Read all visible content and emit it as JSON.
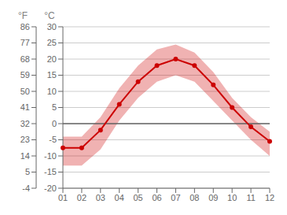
{
  "chart_data": {
    "type": "line",
    "categories": [
      "01",
      "02",
      "03",
      "04",
      "05",
      "06",
      "07",
      "08",
      "09",
      "10",
      "11",
      "12"
    ],
    "values": [
      -7.5,
      -7.5,
      -2,
      6,
      13,
      18,
      20,
      18,
      12,
      5,
      -1,
      -5.5
    ],
    "max": [
      -4,
      -4,
      2,
      11,
      18,
      23,
      24.5,
      22,
      16,
      8,
      2,
      -2.5
    ],
    "min": [
      -13,
      -13,
      -8,
      1,
      8,
      13,
      15,
      13,
      7,
      1,
      -5,
      -10
    ],
    "color": "#cc0000",
    "ylim": [
      -20,
      30
    ],
    "yticks": [
      -20,
      -15,
      -10,
      -5,
      0,
      5,
      10,
      15,
      20,
      25,
      30
    ],
    "y2lim": [
      -4,
      86
    ],
    "y2ticks": [
      -4,
      5,
      14,
      23,
      32,
      41,
      50,
      59,
      68,
      77,
      86
    ],
    "y_label": "°C",
    "y2_label": "°F",
    "grid": true,
    "reference_lines": [
      0
    ]
  }
}
